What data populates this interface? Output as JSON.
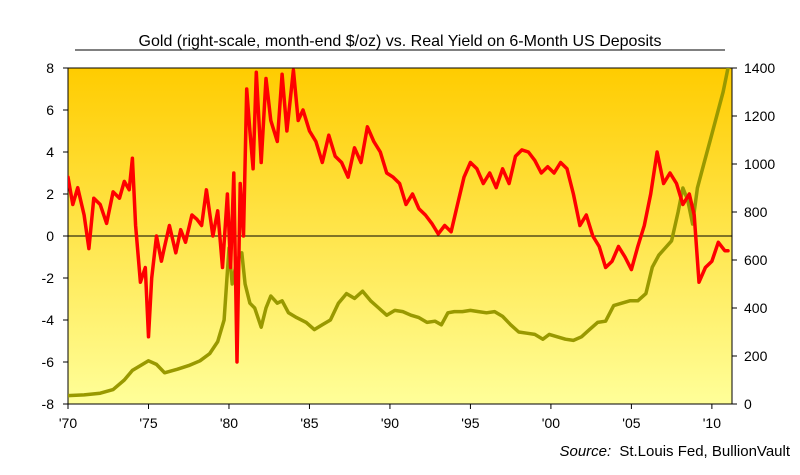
{
  "chart_data": {
    "type": "line",
    "title": "Gold (right-scale, month-end $/oz) vs. Real Yield on 6-Month US Deposits",
    "source_label": "Source:",
    "source_text": "St.Louis Fed, BullionVault",
    "x_ticks": [
      "'70",
      "'75",
      "'80",
      "'85",
      "'90",
      "'95",
      "'00",
      "'05",
      "'10"
    ],
    "x_tick_years": [
      1970,
      1975,
      1980,
      1985,
      1990,
      1995,
      2000,
      2005,
      2010
    ],
    "xlim": [
      1970,
      2011.25
    ],
    "y_left_ticks": [
      "8",
      "6",
      "4",
      "2",
      "0",
      "-2",
      "-4",
      "-6",
      "-8"
    ],
    "y_left_tick_values": [
      8,
      6,
      4,
      2,
      0,
      -2,
      -4,
      -6,
      -8
    ],
    "ylim_left": [
      -8,
      8
    ],
    "y_right_ticks": [
      "1400",
      "1200",
      "1000",
      "800",
      "600",
      "400",
      "200",
      "0"
    ],
    "y_right_tick_values": [
      1400,
      1200,
      1000,
      800,
      600,
      400,
      200,
      0
    ],
    "ylim_right": [
      0,
      1400
    ],
    "colors": {
      "real_yield": "#ff0000",
      "gold": "#999900",
      "bg_top": "#ffcc00",
      "bg_bottom": "#ffff99",
      "zero_line": "#000000"
    },
    "series": [
      {
        "axis": "left",
        "x": [
          1970.0,
          1970.3,
          1970.6,
          1971.0,
          1971.3,
          1971.6,
          1972.0,
          1972.4,
          1972.8,
          1973.2,
          1973.5,
          1973.8,
          1974.0,
          1974.2,
          1974.5,
          1974.8,
          1975.0,
          1975.2,
          1975.5,
          1975.8,
          1976.0,
          1976.3,
          1976.7,
          1977.0,
          1977.3,
          1977.7,
          1978.0,
          1978.3,
          1978.6,
          1979.0,
          1979.3,
          1979.6,
          1979.9,
          1980.1,
          1980.3,
          1980.5,
          1980.7,
          1980.9,
          1981.1,
          1981.3,
          1981.5,
          1981.7,
          1982.0,
          1982.3,
          1982.6,
          1983.0,
          1983.3,
          1983.6,
          1984.0,
          1984.3,
          1984.6,
          1985.0,
          1985.4,
          1985.8,
          1986.2,
          1986.6,
          1987.0,
          1987.4,
          1987.8,
          1988.2,
          1988.6,
          1989.0,
          1989.4,
          1989.8,
          1990.2,
          1990.6,
          1991.0,
          1991.4,
          1991.8,
          1992.2,
          1992.6,
          1993.0,
          1993.4,
          1993.8,
          1994.2,
          1994.6,
          1995.0,
          1995.4,
          1995.8,
          1996.2,
          1996.6,
          1997.0,
          1997.4,
          1997.8,
          1998.2,
          1998.6,
          1999.0,
          1999.4,
          1999.8,
          2000.2,
          2000.6,
          2001.0,
          2001.4,
          2001.8,
          2002.2,
          2002.6,
          2003.0,
          2003.4,
          2003.8,
          2004.2,
          2004.6,
          2005.0,
          2005.4,
          2005.8,
          2006.2,
          2006.6,
          2007.0,
          2007.4,
          2007.8,
          2008.2,
          2008.6,
          2008.9,
          2009.2,
          2009.6,
          2010.0,
          2010.4,
          2010.8,
          2011.0
        ],
        "y": [
          2.8,
          1.5,
          2.3,
          1.0,
          -0.6,
          1.8,
          1.5,
          0.6,
          2.1,
          1.8,
          2.6,
          2.2,
          3.7,
          0.5,
          -2.2,
          -1.5,
          -4.8,
          -2.0,
          0.0,
          -1.2,
          -0.5,
          0.5,
          -0.8,
          0.3,
          -0.3,
          1.0,
          0.8,
          0.5,
          2.2,
          0.0,
          1.2,
          -1.5,
          2.0,
          -1.5,
          3.0,
          -6.0,
          2.5,
          0.0,
          7.0,
          5.0,
          3.2,
          7.8,
          3.5,
          7.5,
          5.5,
          4.5,
          7.7,
          5.0,
          7.9,
          5.5,
          6.0,
          5.0,
          4.5,
          3.5,
          4.8,
          3.8,
          3.5,
          2.8,
          4.2,
          3.5,
          5.2,
          4.5,
          4.0,
          3.0,
          2.8,
          2.5,
          1.5,
          2.0,
          1.3,
          1.0,
          0.6,
          0.1,
          0.5,
          0.2,
          1.5,
          2.8,
          3.5,
          3.2,
          2.5,
          3.0,
          2.3,
          3.2,
          2.5,
          3.8,
          4.1,
          4.0,
          3.6,
          3.0,
          3.3,
          3.0,
          3.5,
          3.2,
          2.0,
          0.5,
          1.0,
          0.0,
          -0.5,
          -1.5,
          -1.2,
          -0.5,
          -1.0,
          -1.6,
          -0.5,
          0.5,
          2.0,
          4.0,
          2.5,
          3.0,
          2.5,
          1.5,
          2.0,
          1.0,
          -2.2,
          -1.5,
          -1.2,
          -0.3,
          -0.7,
          -0.7
        ]
      },
      {
        "axis": "right",
        "x": [
          1970.0,
          1971.0,
          1972.0,
          1972.8,
          1973.5,
          1974.0,
          1974.5,
          1975.0,
          1975.5,
          1976.0,
          1976.8,
          1977.5,
          1978.2,
          1978.8,
          1979.3,
          1979.7,
          1980.0,
          1980.2,
          1980.5,
          1980.8,
          1981.0,
          1981.3,
          1981.6,
          1982.0,
          1982.3,
          1982.6,
          1983.0,
          1983.3,
          1983.7,
          1984.2,
          1984.8,
          1985.3,
          1985.8,
          1986.3,
          1986.8,
          1987.3,
          1987.8,
          1988.3,
          1988.8,
          1989.3,
          1989.8,
          1990.3,
          1990.8,
          1991.3,
          1991.8,
          1992.3,
          1992.8,
          1993.2,
          1993.6,
          1994.0,
          1994.5,
          1995.0,
          1995.5,
          1996.0,
          1996.5,
          1997.0,
          1997.5,
          1998.0,
          1998.5,
          1999.0,
          1999.5,
          1999.9,
          2000.4,
          2000.9,
          2001.4,
          2001.9,
          2002.4,
          2002.9,
          2003.4,
          2003.9,
          2004.4,
          2004.9,
          2005.4,
          2005.9,
          2006.3,
          2006.7,
          2007.1,
          2007.5,
          2007.9,
          2008.2,
          2008.5,
          2008.8,
          2009.1,
          2009.5,
          2009.9,
          2010.3,
          2010.7,
          2011.0
        ],
        "y": [
          35,
          38,
          45,
          60,
          100,
          140,
          160,
          180,
          165,
          130,
          145,
          160,
          180,
          210,
          260,
          350,
          650,
          500,
          600,
          630,
          500,
          420,
          400,
          320,
          400,
          450,
          420,
          430,
          380,
          360,
          340,
          310,
          330,
          350,
          420,
          460,
          440,
          470,
          430,
          400,
          370,
          390,
          385,
          370,
          360,
          340,
          345,
          330,
          380,
          385,
          385,
          390,
          385,
          380,
          385,
          365,
          330,
          300,
          295,
          290,
          270,
          290,
          280,
          270,
          265,
          280,
          310,
          340,
          345,
          410,
          420,
          430,
          430,
          460,
          570,
          620,
          650,
          680,
          800,
          900,
          850,
          750,
          900,
          1000,
          1100,
          1200,
          1300,
          1400
        ]
      }
    ]
  }
}
